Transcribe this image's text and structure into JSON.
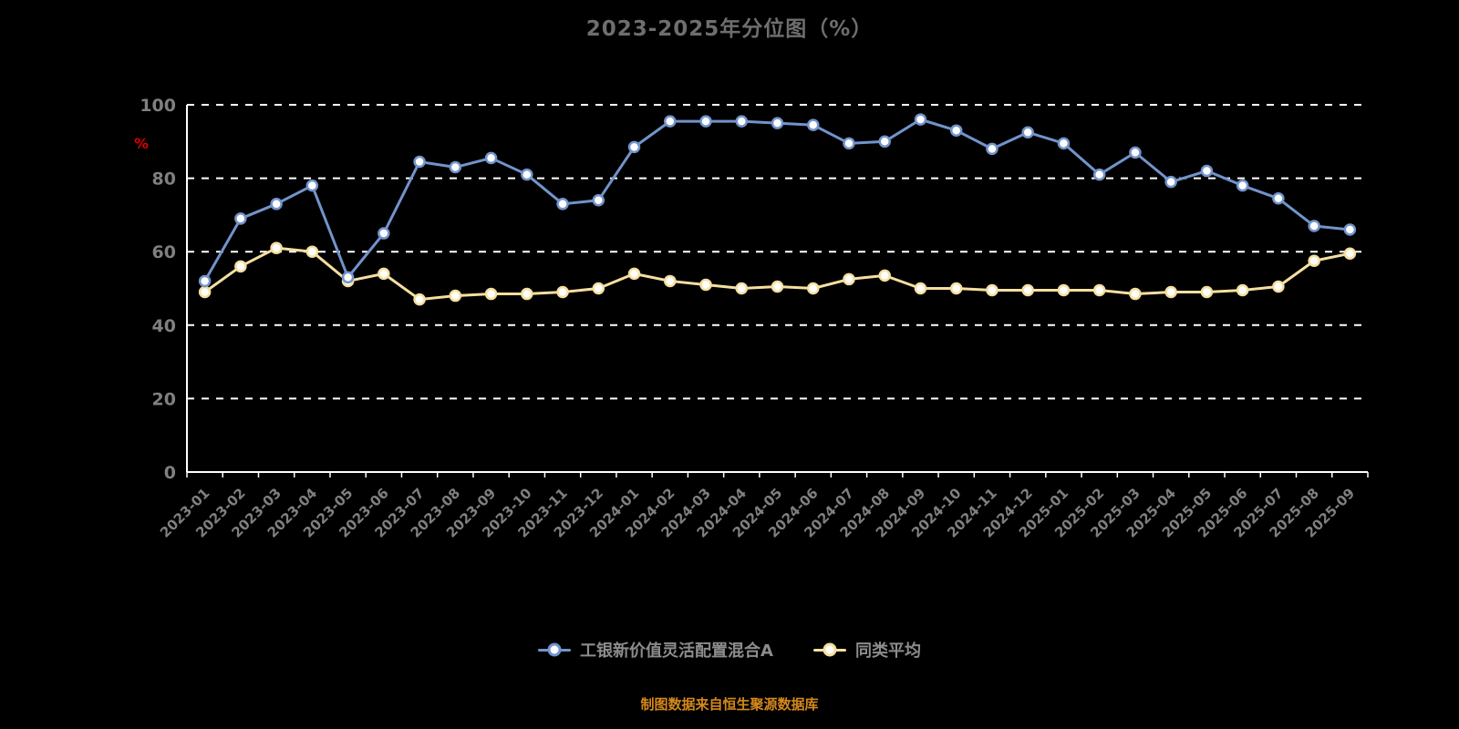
{
  "header": {
    "title": "2023-2025年分位图（%）"
  },
  "footer": {
    "source_text": "制图数据来自恒生聚源数据库"
  },
  "chart_data": {
    "type": "line",
    "title": "2023-2025年分位图（%）",
    "unit_label": "%",
    "xlabel": "",
    "ylabel": "%",
    "ylim": [
      0,
      100
    ],
    "yticks": [
      0,
      20,
      40,
      60,
      80,
      100
    ],
    "grid": "horizontal-dashed",
    "legend_position": "bottom",
    "categories": [
      "2023-01",
      "2023-02",
      "2023-03",
      "2023-04",
      "2023-05",
      "2023-06",
      "2023-07",
      "2023-08",
      "2023-09",
      "2023-10",
      "2023-11",
      "2023-12",
      "2024-01",
      "2024-02",
      "2024-03",
      "2024-04",
      "2024-05",
      "2024-06",
      "2024-07",
      "2024-08",
      "2024-09",
      "2024-10",
      "2024-11",
      "2024-12",
      "2025-01",
      "2025-02",
      "2025-03",
      "2025-04",
      "2025-05",
      "2025-06",
      "2025-07",
      "2025-08",
      "2025-09"
    ],
    "series": [
      {
        "name": "工银新价值灵活配置混合A",
        "color": "#7293cb",
        "marker_fill": "#ffffff",
        "values": [
          52,
          69,
          73,
          78,
          53,
          65,
          84.5,
          83,
          85.5,
          81,
          73,
          74,
          88.5,
          95.5,
          95.5,
          95.5,
          95,
          94.5,
          89.5,
          90,
          96,
          93,
          88,
          92.5,
          89.5,
          81,
          87,
          79,
          82,
          78,
          74.5,
          67,
          66
        ]
      },
      {
        "name": "同类平均",
        "color": "#f5dfa0",
        "marker_fill": "#ffffff",
        "values": [
          49,
          56,
          61,
          60,
          52,
          54,
          47,
          48,
          48.5,
          48.5,
          49,
          50,
          54,
          52,
          51,
          50,
          50.5,
          50,
          52.5,
          53.5,
          50,
          50,
          49.5,
          49.5,
          49.5,
          49.5,
          48.5,
          49,
          49,
          49.5,
          50.5,
          57.5,
          59.5
        ]
      }
    ],
    "colors": {
      "series_fund": "#7293cb",
      "series_peer": "#f5dfa0",
      "gridline": "#ffffff",
      "axis": "#ffffff",
      "tick_label": "#808080",
      "title_text": "#6e6e6e",
      "unit_label": "#dd0000",
      "legend_text": "#8c8c8c",
      "source_text": "#d5891b",
      "background": "#000000"
    }
  }
}
